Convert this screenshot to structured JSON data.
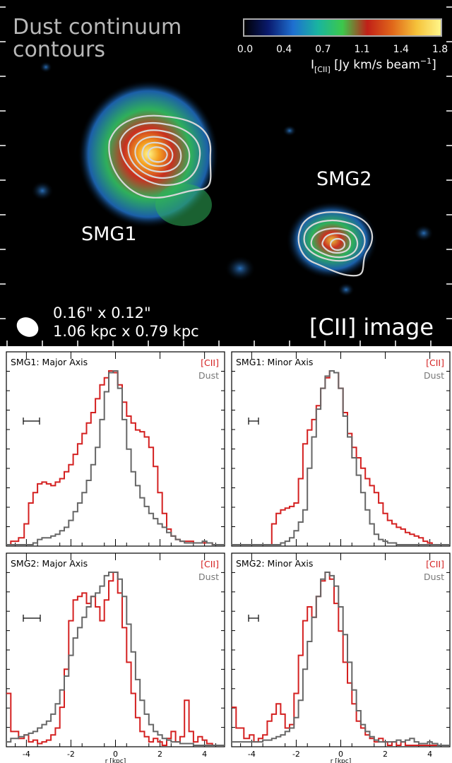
{
  "image_panel": {
    "title_line1": "Dust continuum",
    "title_line2": "contours",
    "colorbar": {
      "ticks": [
        "0.0",
        "0.4",
        "0.7",
        "1.1",
        "1.4",
        "1.8"
      ],
      "label": "I[CII] [Jy km/s beam⁻¹]",
      "label_main": "I",
      "label_sub": "[CII]",
      "label_rest": " [Jy km/s beam",
      "label_sup": "−1",
      "label_end": "]",
      "colors": [
        "#000000",
        "#0a1a6e",
        "#1e6fd0",
        "#19b4a0",
        "#3cc84b",
        "#c02018",
        "#e0661a",
        "#f5c23a",
        "#fff78c"
      ]
    },
    "source_labels": [
      "SMG1",
      "SMG2"
    ],
    "beam_line1": "0.16\" x 0.12\"",
    "beam_line2": "1.06 kpc x 0.79 kpc",
    "image_label": "[CII] image",
    "colors": {
      "background": "#000000",
      "contour": "#d8d8d8",
      "text": "#ffffff"
    }
  },
  "profiles": {
    "x_axis_label": "r [kpc]",
    "x_ticks": [
      -4,
      -2,
      0,
      2,
      4
    ],
    "legend": {
      "cii": "[CII]",
      "dust": "Dust"
    },
    "colors": {
      "cii": "#d42020",
      "dust": "#666666"
    }
  },
  "chart_data": [
    {
      "type": "line",
      "title": "SMG1: Major Axis",
      "xlim": [
        -4.9,
        4.9
      ],
      "ylim": [
        0,
        1
      ],
      "series": [
        {
          "name": "[CII]",
          "x": [
            -4.9,
            -4.5,
            -4.2,
            -4.0,
            -3.8,
            -3.6,
            -3.4,
            -3.2,
            -3.0,
            -2.8,
            -2.6,
            -2.4,
            -2.2,
            -2.0,
            -1.8,
            -1.6,
            -1.4,
            -1.2,
            -1.0,
            -0.8,
            -0.6,
            -0.4,
            -0.2,
            0.0,
            0.2,
            0.4,
            0.6,
            0.8,
            1.0,
            1.2,
            1.4,
            1.6,
            1.8,
            2.0,
            2.2,
            2.4,
            2.6,
            2.8,
            3.0,
            3.2,
            3.4,
            3.6,
            3.8,
            4.0,
            4.2,
            4.5,
            4.9
          ],
          "y": [
            0.0,
            0.02,
            0.04,
            0.12,
            0.24,
            0.3,
            0.35,
            0.36,
            0.35,
            0.34,
            0.36,
            0.38,
            0.42,
            0.46,
            0.52,
            0.58,
            0.64,
            0.7,
            0.76,
            0.84,
            0.92,
            0.96,
            1.0,
            0.99,
            0.92,
            0.82,
            0.74,
            0.7,
            0.66,
            0.65,
            0.62,
            0.56,
            0.45,
            0.3,
            0.18,
            0.09,
            0.05,
            0.03,
            0.02,
            0.02,
            0.02,
            0.01,
            0.01,
            0.01,
            0.01,
            0.0,
            0.0
          ]
        },
        {
          "name": "Dust",
          "x": [
            -4.9,
            -4.5,
            -4.2,
            -4.0,
            -3.8,
            -3.6,
            -3.4,
            -3.2,
            -3.0,
            -2.8,
            -2.6,
            -2.4,
            -2.2,
            -2.0,
            -1.8,
            -1.6,
            -1.4,
            -1.2,
            -1.0,
            -0.8,
            -0.6,
            -0.4,
            -0.2,
            0.0,
            0.2,
            0.4,
            0.6,
            0.8,
            1.0,
            1.2,
            1.4,
            1.6,
            1.8,
            2.0,
            2.2,
            2.4,
            2.6,
            2.8,
            3.0,
            3.2,
            3.4,
            3.6,
            3.8,
            4.0,
            4.2,
            4.5,
            4.9
          ],
          "y": [
            0.0,
            0.0,
            0.0,
            0.0,
            0.0,
            0.01,
            0.03,
            0.04,
            0.04,
            0.05,
            0.06,
            0.08,
            0.1,
            0.14,
            0.19,
            0.24,
            0.3,
            0.37,
            0.46,
            0.56,
            0.72,
            0.88,
            0.99,
            1.0,
            0.9,
            0.72,
            0.55,
            0.42,
            0.34,
            0.27,
            0.22,
            0.18,
            0.15,
            0.12,
            0.1,
            0.07,
            0.05,
            0.03,
            0.02,
            0.01,
            0.01,
            0.01,
            0.01,
            0.02,
            0.01,
            0.0,
            0.0
          ]
        }
      ]
    },
    {
      "type": "line",
      "title": "SMG1: Minor Axis",
      "xlim": [
        -4.9,
        4.9
      ],
      "ylim": [
        0,
        1
      ],
      "series": [
        {
          "name": "[CII]",
          "x": [
            -4.9,
            -4.5,
            -4.2,
            -4.0,
            -3.8,
            -3.6,
            -3.4,
            -3.2,
            -3.0,
            -2.8,
            -2.6,
            -2.4,
            -2.2,
            -2.0,
            -1.8,
            -1.6,
            -1.4,
            -1.2,
            -1.0,
            -0.8,
            -0.6,
            -0.4,
            -0.2,
            0.0,
            0.2,
            0.4,
            0.6,
            0.8,
            1.0,
            1.2,
            1.4,
            1.6,
            1.8,
            2.0,
            2.2,
            2.4,
            2.6,
            2.8,
            3.0,
            3.2,
            3.4,
            3.6,
            3.8,
            4.0,
            4.2,
            4.5,
            4.9
          ],
          "y": [
            0.0,
            0.0,
            0.0,
            0.0,
            0.0,
            0.0,
            0.0,
            0.0,
            0.12,
            0.18,
            0.2,
            0.21,
            0.22,
            0.24,
            0.38,
            0.58,
            0.66,
            0.72,
            0.8,
            0.9,
            0.96,
            1.0,
            0.99,
            0.9,
            0.76,
            0.64,
            0.56,
            0.5,
            0.44,
            0.38,
            0.34,
            0.3,
            0.24,
            0.18,
            0.14,
            0.12,
            0.1,
            0.09,
            0.07,
            0.06,
            0.05,
            0.04,
            0.02,
            0.01,
            0.0,
            0.0,
            0.0
          ]
        },
        {
          "name": "Dust",
          "x": [
            -4.9,
            -4.5,
            -4.2,
            -4.0,
            -3.8,
            -3.6,
            -3.4,
            -3.2,
            -3.0,
            -2.8,
            -2.6,
            -2.4,
            -2.2,
            -2.0,
            -1.8,
            -1.6,
            -1.4,
            -1.2,
            -1.0,
            -0.8,
            -0.6,
            -0.4,
            -0.2,
            0.0,
            0.2,
            0.4,
            0.6,
            0.8,
            1.0,
            1.2,
            1.4,
            1.6,
            1.8,
            2.0,
            2.2,
            2.4,
            2.6,
            2.8,
            3.0,
            3.2,
            3.4,
            3.6,
            3.8,
            4.0,
            4.2,
            4.5,
            4.9
          ],
          "y": [
            0.0,
            0.0,
            0.0,
            0.0,
            0.0,
            0.0,
            0.0,
            0.0,
            0.0,
            0.0,
            0.01,
            0.02,
            0.04,
            0.08,
            0.13,
            0.2,
            0.44,
            0.62,
            0.78,
            0.9,
            0.97,
            1.0,
            0.99,
            0.9,
            0.74,
            0.62,
            0.5,
            0.4,
            0.3,
            0.2,
            0.12,
            0.06,
            0.03,
            0.02,
            0.01,
            0.01,
            0.0,
            0.0,
            0.0,
            0.0,
            0.0,
            0.0,
            0.0,
            0.0,
            0.0,
            0.0,
            0.0
          ]
        }
      ]
    },
    {
      "type": "line",
      "title": "SMG2: Major Axis",
      "xlim": [
        -4.9,
        4.9
      ],
      "ylim": [
        0,
        1
      ],
      "series": [
        {
          "name": "[CII]",
          "x": [
            -4.9,
            -4.5,
            -4.2,
            -4.0,
            -3.8,
            -3.6,
            -3.4,
            -3.2,
            -3.0,
            -2.8,
            -2.6,
            -2.4,
            -2.2,
            -2.0,
            -1.8,
            -1.6,
            -1.4,
            -1.2,
            -1.0,
            -0.8,
            -0.6,
            -0.4,
            -0.2,
            0.0,
            0.2,
            0.4,
            0.6,
            0.8,
            1.0,
            1.2,
            1.4,
            1.6,
            1.8,
            2.0,
            2.2,
            2.4,
            2.6,
            2.8,
            3.0,
            3.2,
            3.4,
            3.6,
            3.8,
            4.0,
            4.2,
            4.5,
            4.9
          ],
          "y": [
            0.3,
            0.08,
            0.04,
            0.06,
            0.02,
            0.03,
            0.01,
            0.02,
            0.03,
            0.06,
            0.1,
            0.22,
            0.44,
            0.72,
            0.84,
            0.86,
            0.88,
            0.82,
            0.86,
            0.8,
            0.72,
            0.84,
            0.95,
            1.0,
            0.88,
            0.68,
            0.48,
            0.3,
            0.16,
            0.08,
            0.05,
            0.02,
            0.04,
            0.02,
            0.0,
            0.04,
            0.08,
            0.02,
            0.05,
            0.26,
            0.08,
            0.02,
            0.05,
            0.03,
            0.01,
            0.0,
            0.0
          ]
        },
        {
          "name": "Dust",
          "x": [
            -4.9,
            -4.5,
            -4.2,
            -4.0,
            -3.8,
            -3.6,
            -3.4,
            -3.2,
            -3.0,
            -2.8,
            -2.6,
            -2.4,
            -2.2,
            -2.0,
            -1.8,
            -1.6,
            -1.4,
            -1.2,
            -1.0,
            -0.8,
            -0.6,
            -0.4,
            -0.2,
            0.0,
            0.2,
            0.4,
            0.6,
            0.8,
            1.0,
            1.2,
            1.4,
            1.6,
            1.8,
            2.0,
            2.2,
            2.4,
            2.6,
            2.8,
            3.0,
            3.2,
            3.4,
            3.6,
            3.8,
            4.0,
            4.2,
            4.5,
            4.9
          ],
          "y": [
            0.02,
            0.04,
            0.05,
            0.06,
            0.07,
            0.08,
            0.1,
            0.12,
            0.14,
            0.18,
            0.24,
            0.32,
            0.4,
            0.52,
            0.62,
            0.68,
            0.74,
            0.8,
            0.86,
            0.88,
            0.92,
            0.98,
            1.0,
            1.0,
            0.96,
            0.86,
            0.7,
            0.54,
            0.38,
            0.26,
            0.18,
            0.12,
            0.08,
            0.06,
            0.04,
            0.03,
            0.02,
            0.02,
            0.01,
            0.01,
            0.01,
            0.0,
            0.0,
            0.0,
            0.0,
            0.0,
            0.0
          ]
        }
      ]
    },
    {
      "type": "line",
      "title": "SMG2: Minor Axis",
      "xlim": [
        -4.9,
        4.9
      ],
      "ylim": [
        0,
        1
      ],
      "series": [
        {
          "name": "[CII]",
          "x": [
            -4.9,
            -4.5,
            -4.2,
            -4.0,
            -3.8,
            -3.6,
            -3.4,
            -3.2,
            -3.0,
            -2.8,
            -2.6,
            -2.4,
            -2.2,
            -2.0,
            -1.8,
            -1.6,
            -1.4,
            -1.2,
            -1.0,
            -0.8,
            -0.6,
            -0.4,
            -0.2,
            0.0,
            0.2,
            0.4,
            0.6,
            0.8,
            1.0,
            1.2,
            1.4,
            1.6,
            1.8,
            2.0,
            2.2,
            2.4,
            2.6,
            2.8,
            3.0,
            3.2,
            3.4,
            3.6,
            3.8,
            4.0,
            4.2,
            4.5,
            4.9
          ],
          "y": [
            0.22,
            0.1,
            0.04,
            0.06,
            0.02,
            0.04,
            0.06,
            0.14,
            0.18,
            0.24,
            0.18,
            0.1,
            0.12,
            0.3,
            0.52,
            0.72,
            0.8,
            0.74,
            0.86,
            0.95,
            1.0,
            0.96,
            0.82,
            0.66,
            0.48,
            0.36,
            0.24,
            0.14,
            0.1,
            0.06,
            0.04,
            0.02,
            0.04,
            0.02,
            0.0,
            0.02,
            0.0,
            0.02,
            0.0,
            0.0,
            0.0,
            0.0,
            0.0,
            0.0,
            0.0,
            0.0,
            0.0
          ]
        },
        {
          "name": "Dust",
          "x": [
            -4.9,
            -4.5,
            -4.2,
            -4.0,
            -3.8,
            -3.6,
            -3.4,
            -3.2,
            -3.0,
            -2.8,
            -2.6,
            -2.4,
            -2.2,
            -2.0,
            -1.8,
            -1.6,
            -1.4,
            -1.2,
            -1.0,
            -0.8,
            -0.6,
            -0.4,
            -0.2,
            0.0,
            0.2,
            0.4,
            0.6,
            0.8,
            1.0,
            1.2,
            1.4,
            1.6,
            1.8,
            2.0,
            2.2,
            2.4,
            2.6,
            2.8,
            3.0,
            3.2,
            3.4,
            3.6,
            3.8,
            4.0,
            4.2,
            4.5,
            4.9
          ],
          "y": [
            0.02,
            0.02,
            0.02,
            0.02,
            0.02,
            0.02,
            0.03,
            0.03,
            0.04,
            0.05,
            0.06,
            0.08,
            0.1,
            0.16,
            0.26,
            0.44,
            0.6,
            0.74,
            0.86,
            0.96,
            1.0,
            0.98,
            0.92,
            0.8,
            0.64,
            0.48,
            0.32,
            0.2,
            0.12,
            0.08,
            0.05,
            0.03,
            0.02,
            0.02,
            0.02,
            0.02,
            0.03,
            0.02,
            0.03,
            0.04,
            0.02,
            0.01,
            0.01,
            0.02,
            0.01,
            0.0,
            0.0
          ]
        }
      ]
    }
  ]
}
